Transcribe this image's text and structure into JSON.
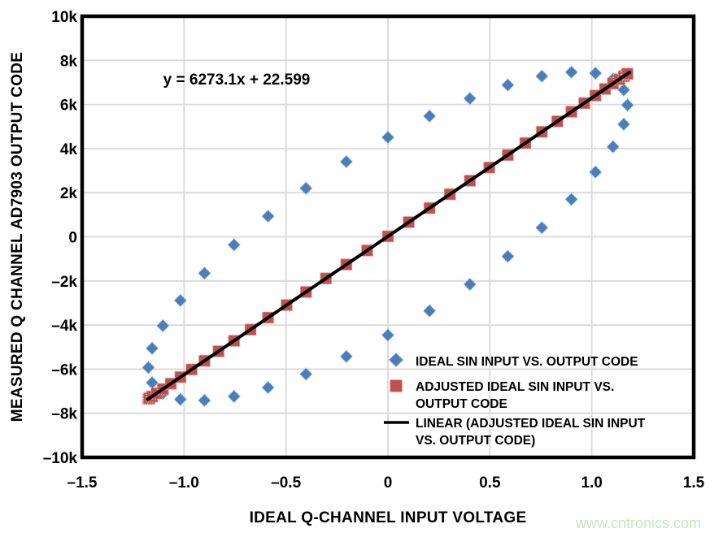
{
  "page": {
    "background": "#ffffff"
  },
  "watermark": {
    "text": "www.cntronics.com",
    "color": "#c8e6bd"
  },
  "chart_data": {
    "type": "scatter",
    "title": "",
    "xlabel": "IDEAL Q-CHANNEL INPUT VOLTAGE",
    "ylabel": "MEASURED Q CHANNEL AD7903 OUTPUT CODE",
    "xlim": [
      -1.5,
      1.5
    ],
    "ylim": [
      -10000,
      10000
    ],
    "grid": true,
    "grid_color": "#d9d9d9",
    "axis_color": "#000000",
    "x_ticks": {
      "values": [
        -1.5,
        -1.0,
        -0.5,
        0,
        0.5,
        1.0,
        1.5
      ],
      "labels": [
        "–1.5",
        "–1.0",
        "–0.5",
        "0",
        "0.5",
        "1.0",
        "1.5"
      ]
    },
    "y_ticks": {
      "values": [
        10000,
        8000,
        6000,
        4000,
        2000,
        0,
        -2000,
        -4000,
        -6000,
        -8000,
        -10000
      ],
      "labels": [
        "10k",
        "8k",
        "6k",
        "4k",
        "2k",
        "0",
        "–2k",
        "–4k",
        "–6k",
        "–8k",
        "–10k"
      ]
    },
    "annotation": {
      "text": "y = 6273.1x + 22.599"
    },
    "series": [
      {
        "name": "IDEAL SIN INPUT VS. OUTPUT CODE",
        "type": "scatter",
        "marker": "diamond",
        "color": "#4a7ebb",
        "edge_color": "#90b0d8",
        "points": [
          [
            0.0,
            4508
          ],
          [
            0.204,
            5474
          ],
          [
            0.402,
            6273
          ],
          [
            0.588,
            6883
          ],
          [
            0.755,
            7284
          ],
          [
            0.9,
            7465
          ],
          [
            1.018,
            7419
          ],
          [
            1.104,
            7149
          ],
          [
            1.157,
            6663
          ],
          [
            1.175,
            5975
          ],
          [
            1.157,
            5106
          ],
          [
            1.104,
            4082
          ],
          [
            1.018,
            2936
          ],
          [
            0.9,
            1701
          ],
          [
            0.755,
            415
          ],
          [
            0.588,
            -883
          ],
          [
            0.402,
            -2153
          ],
          [
            0.204,
            -3357
          ],
          [
            0.0,
            -4458
          ],
          [
            -0.204,
            -5424
          ],
          [
            -0.402,
            -6223
          ],
          [
            -0.588,
            -6833
          ],
          [
            -0.755,
            -7234
          ],
          [
            -0.9,
            -7415
          ],
          [
            -1.018,
            -7369
          ],
          [
            -1.104,
            -7099
          ],
          [
            -1.157,
            -6613
          ],
          [
            -1.175,
            -5925
          ],
          [
            -1.157,
            -5056
          ],
          [
            -1.104,
            -4032
          ],
          [
            -1.018,
            -2886
          ],
          [
            -0.9,
            -1651
          ],
          [
            -0.755,
            -365
          ],
          [
            -0.588,
            933
          ],
          [
            -0.402,
            2203
          ],
          [
            -0.204,
            3407
          ]
        ]
      },
      {
        "name": "ADJUSTED IDEAL SIN INPUT VS. OUTPUT CODE",
        "type": "scatter",
        "marker": "square",
        "color": "#c0504d",
        "edge_color": "#e5b8b7",
        "points": [
          [
            -1.175,
            -7348
          ],
          [
            -1.171,
            -7320
          ],
          [
            -1.157,
            -7236
          ],
          [
            -1.135,
            -7097
          ],
          [
            -1.104,
            -6904
          ],
          [
            -1.065,
            -6658
          ],
          [
            -1.018,
            -6361
          ],
          [
            -0.963,
            -6015
          ],
          [
            -0.9,
            -5624
          ],
          [
            -0.831,
            -5190
          ],
          [
            -0.755,
            -4715
          ],
          [
            -0.674,
            -4205
          ],
          [
            -0.588,
            -3663
          ],
          [
            -0.497,
            -3093
          ],
          [
            -0.402,
            -2499
          ],
          [
            -0.304,
            -1885
          ],
          [
            -0.204,
            -1257
          ],
          [
            -0.102,
            -620
          ],
          [
            0.0,
            23
          ],
          [
            0.102,
            665
          ],
          [
            0.204,
            1302
          ],
          [
            0.304,
            1930
          ],
          [
            0.402,
            2544
          ],
          [
            0.497,
            3138
          ],
          [
            0.588,
            3708
          ],
          [
            0.674,
            4250
          ],
          [
            0.755,
            4761
          ],
          [
            0.831,
            5235
          ],
          [
            0.9,
            5669
          ],
          [
            0.963,
            6061
          ],
          [
            1.018,
            6406
          ],
          [
            1.065,
            6703
          ],
          [
            1.104,
            6949
          ],
          [
            1.135,
            7143
          ],
          [
            1.157,
            7281
          ],
          [
            1.171,
            7365
          ],
          [
            1.175,
            7393
          ]
        ]
      },
      {
        "name": "LINEAR (ADJUSTED IDEAL SIN INPUT VS. OUTPUT CODE)",
        "type": "line",
        "marker": "line",
        "color": "#000000",
        "points": [
          [
            -1.178,
            -7367
          ],
          [
            1.185,
            7456
          ]
        ]
      }
    ],
    "legend": {
      "position": "inside-bottom-right",
      "entries": [
        {
          "marker": "diamond",
          "lines": [
            "IDEAL SIN INPUT VS. OUTPUT CODE"
          ]
        },
        {
          "marker": "square",
          "lines": [
            "ADJUSTED IDEAL SIN INPUT VS.",
            "OUTPUT CODE"
          ]
        },
        {
          "marker": "line",
          "lines": [
            "LINEAR (ADJUSTED IDEAL SIN INPUT",
            "VS. OUTPUT CODE)"
          ]
        }
      ]
    }
  }
}
